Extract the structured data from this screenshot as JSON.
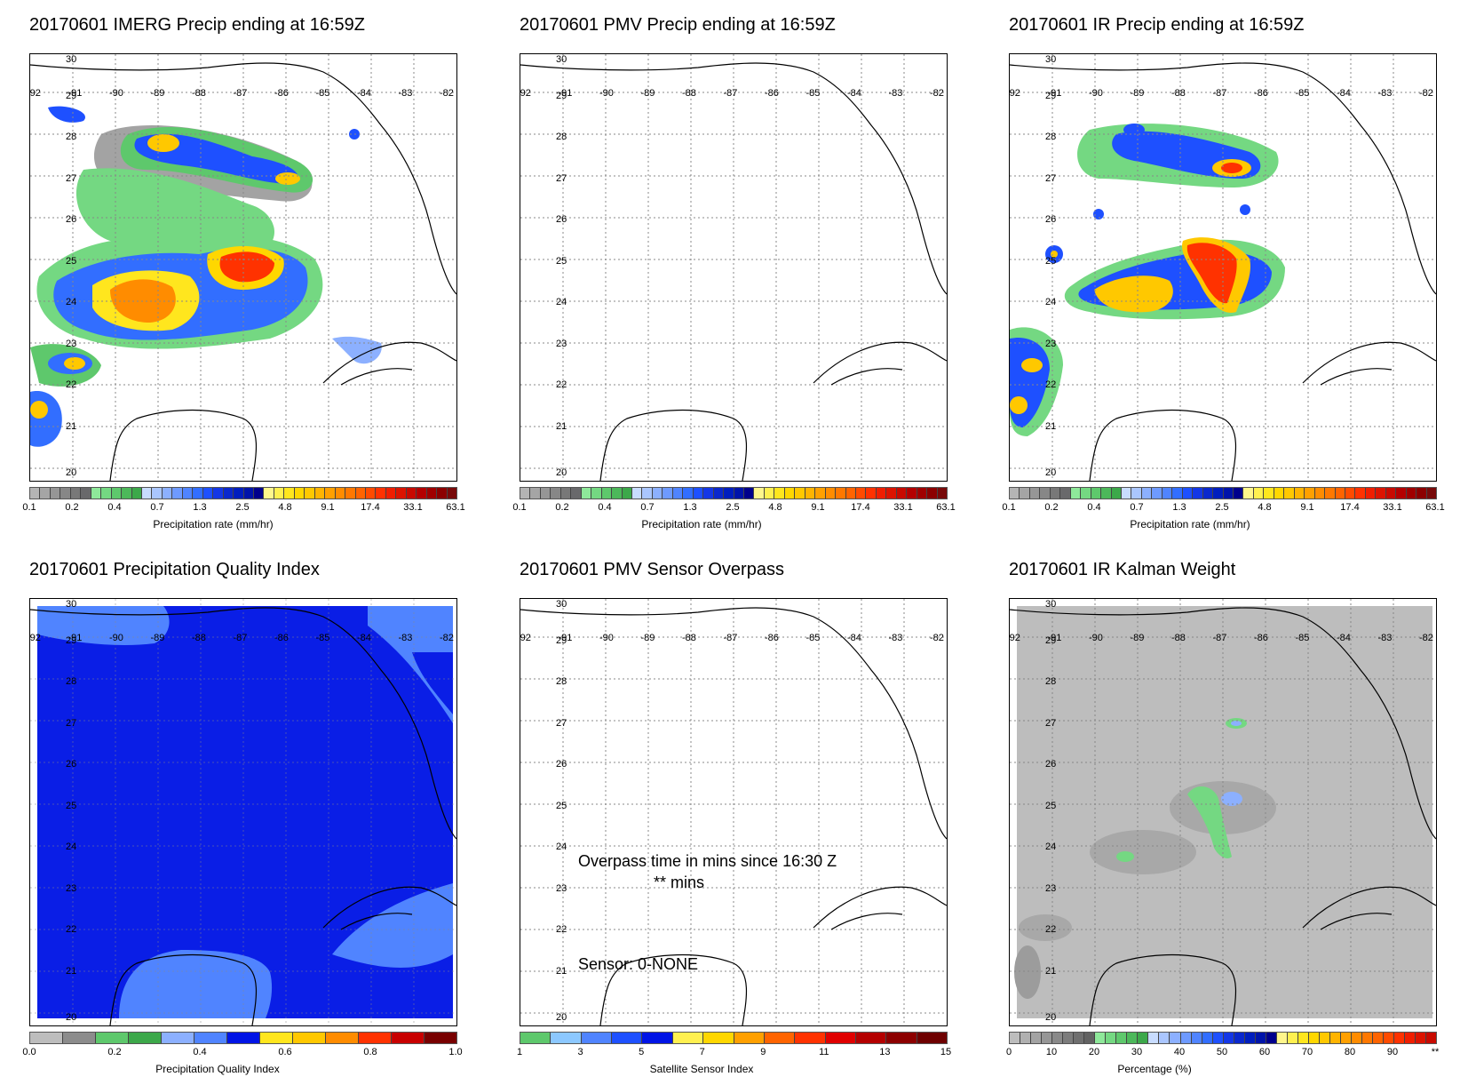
{
  "panels": [
    {
      "title": "20170601 IMERG Precip ending at 16:59Z"
    },
    {
      "title": "20170601 PMV Precip ending at 16:59Z"
    },
    {
      "title": "20170601 IR Precip ending at 16:59Z"
    },
    {
      "title": "20170601 Precipitation Quality Index"
    },
    {
      "title": "20170601 PMV Sensor Overpass"
    },
    {
      "title": "20170601 IR Kalman Weight"
    }
  ],
  "lat_labels": [
    "30",
    "29",
    "28",
    "27",
    "26",
    "25",
    "24",
    "23",
    "22",
    "21",
    "20"
  ],
  "lon_labels": [
    "-92",
    "-91",
    "-90",
    "-89",
    "-88",
    "-87",
    "-86",
    "-85",
    "-84",
    "-83",
    "-82"
  ],
  "colorbars": {
    "precip": {
      "label": "Precipitation rate (mm/hr)",
      "ticks": [
        "0.1",
        "0.2",
        "0.4",
        "0.7",
        "1.3",
        "2.5",
        "4.8",
        "9.1",
        "17.4",
        "33.1",
        "63.1"
      ],
      "colors": [
        "#b4b4b4",
        "#a5a5a5",
        "#969696",
        "#878787",
        "#787878",
        "#69696b",
        "#8ee89a",
        "#74d882",
        "#5ec86c",
        "#4cb85a",
        "#3ca84a",
        "#c8dcff",
        "#aac6ff",
        "#8cb0ff",
        "#6e9aff",
        "#5084ff",
        "#326eff",
        "#1e50ff",
        "#1437e6",
        "#0a28cd",
        "#001ebe",
        "#0014aa",
        "#00008c",
        "#fff68c",
        "#fff050",
        "#ffe61e",
        "#ffd700",
        "#ffc800",
        "#ffb400",
        "#ffa000",
        "#ff8c00",
        "#ff7800",
        "#ff6400",
        "#ff4b00",
        "#ff3200",
        "#f01e00",
        "#dc1400",
        "#c80a00",
        "#b40000",
        "#a00000",
        "#8c0000",
        "#780a0a"
      ]
    },
    "pqi": {
      "label": "Precipitation Quality Index",
      "ticks": [
        "0.0",
        "0.2",
        "0.4",
        "0.6",
        "0.8",
        "1.0"
      ],
      "colors": [
        "#bdbdbd",
        "#8c8c8c",
        "#5ec86c",
        "#3ca84a",
        "#8cb0ff",
        "#5084ff",
        "#0014e6",
        "#ffe61e",
        "#ffc800",
        "#ff8c00",
        "#ff3200",
        "#c80000",
        "#780000"
      ]
    },
    "sensor": {
      "label": "Satellite Sensor Index",
      "ticks": [
        "1",
        "3",
        "5",
        "7",
        "9",
        "11",
        "13",
        "15"
      ],
      "colors": [
        "#5ec86c",
        "#8cc8ff",
        "#5084ff",
        "#1e50ff",
        "#0014e6",
        "#fff050",
        "#ffd700",
        "#ffa000",
        "#ff6400",
        "#ff3200",
        "#e00000",
        "#b40000",
        "#8c0000",
        "#6e0000"
      ]
    },
    "kalman": {
      "label": "Percentage (%)",
      "ticks": [
        "0",
        "10",
        "20",
        "30",
        "40",
        "50",
        "60",
        "70",
        "80",
        "90",
        "**"
      ],
      "colors": [
        "#bdbdbd",
        "#b0b0b0",
        "#a3a3a3",
        "#969696",
        "#898989",
        "#7c7c7c",
        "#6f6f6f",
        "#626262",
        "#8ee89a",
        "#74d882",
        "#5ec86c",
        "#4cb85a",
        "#3ca84a",
        "#c8dcff",
        "#aac6ff",
        "#8cb0ff",
        "#6e9aff",
        "#5084ff",
        "#326eff",
        "#1e50ff",
        "#1437e6",
        "#0a28cd",
        "#001ebe",
        "#0014aa",
        "#00008c",
        "#fff68c",
        "#fff050",
        "#ffe61e",
        "#ffd700",
        "#ffc800",
        "#ffb400",
        "#ffa000",
        "#ff8c00",
        "#ff7800",
        "#ff6400",
        "#ff4b00",
        "#ff3200",
        "#f01e00",
        "#dc1400",
        "#c80a00"
      ]
    }
  },
  "overpass": {
    "line1": "Overpass time in mins since 16:30 Z",
    "line2": "** mins",
    "sensor": "Sensor:   0-NONE"
  }
}
